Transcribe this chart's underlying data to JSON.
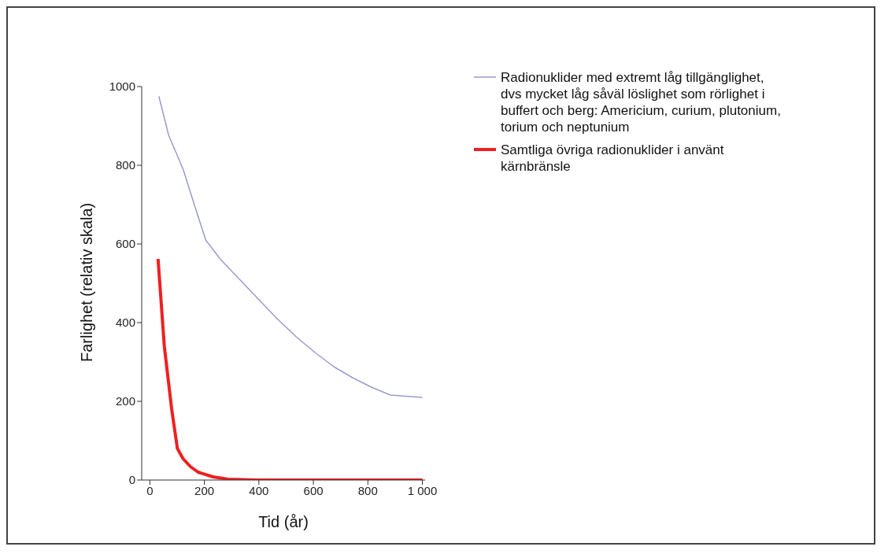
{
  "chart_data": {
    "type": "line",
    "xlabel": "Tid (år)",
    "ylabel": "Farlighet (relativ skala)",
    "xlim": [
      -30,
      1010
    ],
    "xticks": [
      0,
      200,
      400,
      600,
      800,
      {
        "value": 1000,
        "label": "1 000"
      }
    ],
    "ylim": [
      0,
      1000
    ],
    "yticks": [
      0,
      200,
      400,
      600,
      800,
      1000
    ],
    "grid": false,
    "legend": "top right",
    "marker": "none",
    "line_style": "solid",
    "series": [
      {
        "name": "Radionuklider med extremt låg tillgänglighet, dvs mycket låg såväl löslighet som rörlighet i buffert och berg: Americium, curium, plutonium, torium och neptunium",
        "color": "#9a9ad0",
        "x": [
          33,
          69,
          122,
          163,
          205,
          260,
          329,
          398,
          467,
          537,
          606,
          675,
          744,
          813,
          882,
          1000
        ],
        "values": [
          975,
          876,
          790,
          700,
          610,
          560,
          510,
          460,
          410,
          364,
          324,
          288,
          260,
          236,
          216,
          210
        ]
      },
      {
        "name": "Samtliga övriga radionuklider i använt kärnbränsle",
        "color": "#ee2020",
        "x": [
          30,
          53,
          80,
          101,
          122,
          149,
          177,
          232,
          288,
          398,
          1000
        ],
        "values": [
          562,
          340,
          180,
          80,
          54,
          34,
          20,
          8,
          2,
          0,
          0
        ]
      }
    ]
  }
}
